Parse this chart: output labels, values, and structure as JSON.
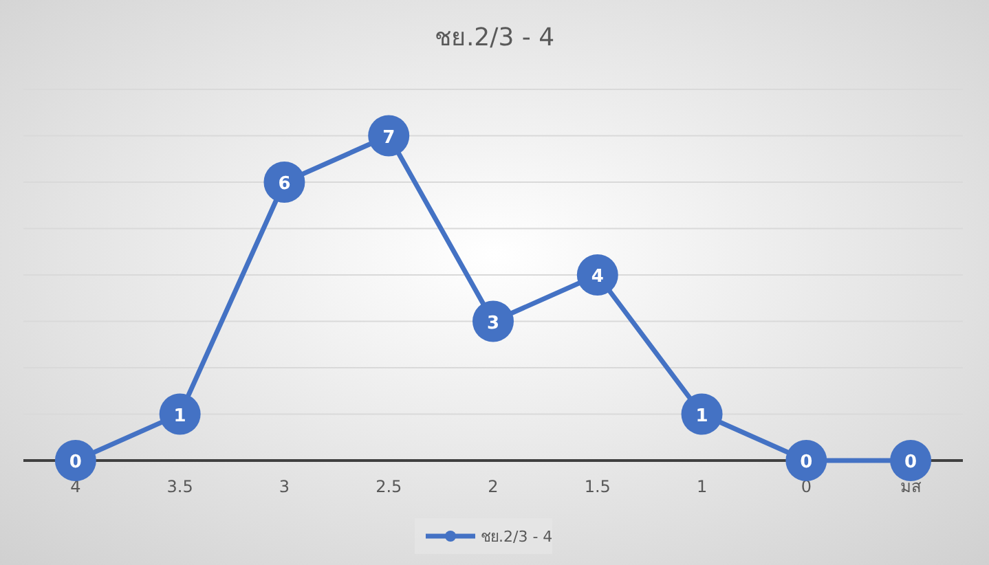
{
  "chart_data": {
    "type": "line",
    "title": "ชย.2/3 - 4",
    "categories": [
      "4",
      "3.5",
      "3",
      "2.5",
      "2",
      "1.5",
      "1",
      "0",
      "มส"
    ],
    "series": [
      {
        "name": "ชย.2/3 - 4",
        "color": "#4472c4",
        "values": [
          0,
          1,
          6,
          7,
          3,
          4,
          1,
          0,
          0
        ]
      }
    ],
    "ylim": [
      0,
      8
    ],
    "yticks": [
      {
        "value": 0,
        "label": null
      },
      {
        "value": 1,
        "label": null
      },
      {
        "value": 2,
        "label": null
      },
      {
        "value": 3,
        "label": null
      },
      {
        "value": 4,
        "label": null
      },
      {
        "value": 5,
        "label": null
      },
      {
        "value": 6,
        "label": null
      },
      {
        "value": 7,
        "label": null
      },
      {
        "value": 8,
        "label": null
      }
    ],
    "tick_labels": "x",
    "grid": "y",
    "legend": "bottom",
    "marker": "circle",
    "line_style": "solid",
    "data_labels": true
  }
}
